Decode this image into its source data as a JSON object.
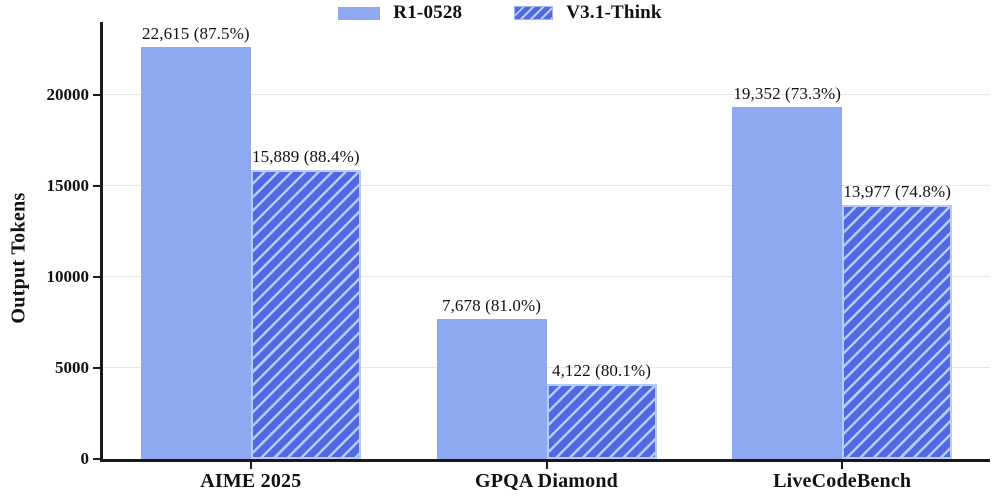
{
  "chart_data": {
    "type": "bar",
    "title": "",
    "ylabel": "Output Tokens",
    "xlabel": "",
    "categories": [
      "AIME 2025",
      "GPQA Diamond",
      "LiveCodeBench"
    ],
    "series": [
      {
        "name": "R1-0528",
        "pattern": "solid",
        "color": "#8FA8F2",
        "values": [
          22615,
          7678,
          19352
        ],
        "labels": [
          "22,615 (87.5%)",
          "7,678 (81.0%)",
          "19,352 (73.3%)"
        ],
        "accuracies": [
          "87.5%",
          "81.0%",
          "73.3%"
        ]
      },
      {
        "name": "V3.1-Think",
        "pattern": "hatch",
        "color": "#5267E2",
        "hatch_color": "#B7CBF8",
        "values": [
          15889,
          4122,
          13977
        ],
        "labels": [
          "15,889 (88.4%)",
          "4,122 (80.1%)",
          "13,977 (74.8%)"
        ],
        "accuracies": [
          "88.4%",
          "80.1%",
          "74.8%"
        ]
      }
    ],
    "yticks": [
      0,
      5000,
      10000,
      15000,
      20000
    ],
    "ylim": [
      0,
      24000
    ],
    "grid": true,
    "legend_position": "top-center",
    "colors": {
      "axis": "#1a1a1a",
      "grid": "#e7e7e7",
      "text": "#111111",
      "background": "#ffffff"
    }
  }
}
